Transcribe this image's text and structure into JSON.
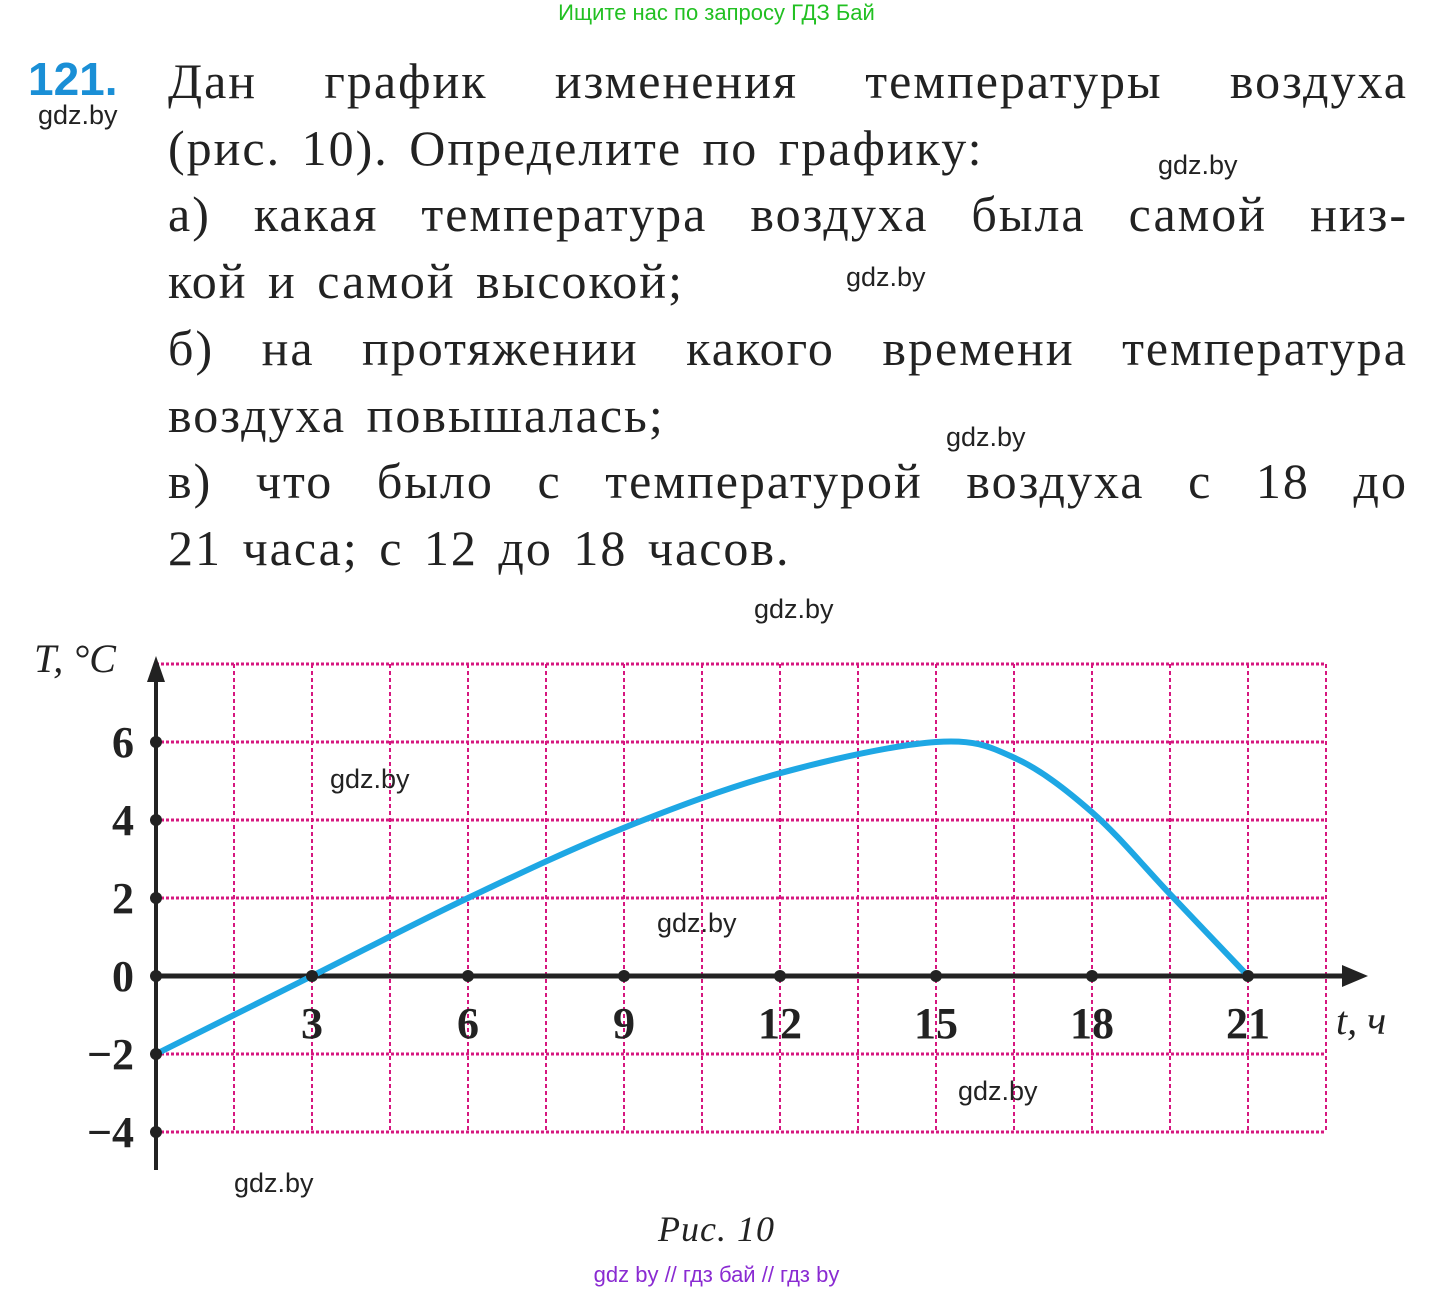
{
  "top_banner": "Ищите нас по запросу ГДЗ Бай",
  "problem": {
    "number": "121.",
    "lines": [
      "Дан график изменения температуры воздуха",
      "(рис. 10). Определите по графику:",
      "а) какая температура воздуха была самой низ-",
      "кой и самой высокой;",
      "б) на протяжении какого времени температура",
      "воздуха повышалась;",
      "в) что было с температурой воздуха с 18 до",
      "21 часа; с 12 до 18 часов."
    ]
  },
  "watermark_text": "gdz.by",
  "caption": "Рис. 10",
  "footer": "gdz by  //  гдз бай  //  гдз by",
  "chart_data": {
    "type": "line",
    "title": "",
    "xlabel": "t, ч",
    "ylabel": "T, °C",
    "xlim": [
      0,
      22.5
    ],
    "ylim": [
      -4,
      8
    ],
    "x_ticks": [
      3,
      6,
      9,
      12,
      15,
      18,
      21
    ],
    "x_tick_labels": [
      "3",
      "6",
      "9",
      "12",
      "15",
      "18",
      "21"
    ],
    "y_ticks": [
      -4,
      -2,
      0,
      2,
      4,
      6
    ],
    "y_tick_labels": [
      "−4",
      "−2",
      "0",
      "2",
      "4",
      "6"
    ],
    "grid": true,
    "grid_step": {
      "x": 1.5,
      "y": 2
    },
    "colors": {
      "curve": "#1ea7e4",
      "grid": "#d6177f",
      "axis": "#222222"
    },
    "series": [
      {
        "x": [
          0,
          3,
          6,
          9,
          12,
          15,
          16.5,
          18,
          19.5,
          21
        ],
        "y": [
          -2,
          0,
          2,
          3.8,
          5.2,
          6,
          5.6,
          4.2,
          2.1,
          0
        ]
      }
    ]
  }
}
